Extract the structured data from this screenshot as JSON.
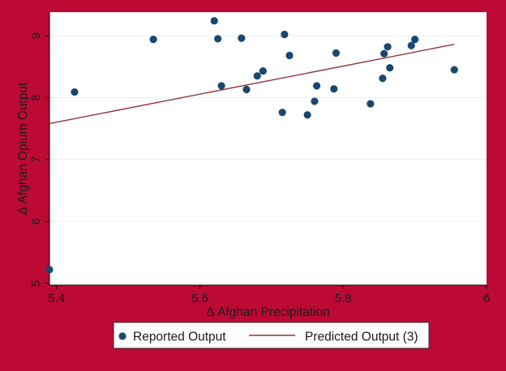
{
  "chart_data": {
    "type": "scatter",
    "title": "",
    "xlabel": "Δ Afghan Precipitation",
    "ylabel": "Δ Afghan Opium Output",
    "xlim": [
      5.39,
      6.0
    ],
    "ylim": [
      4.97,
      9.38
    ],
    "xticks": [
      "5.4",
      "5.6",
      "5.8",
      "6"
    ],
    "yticks": [
      "5",
      "6",
      "7",
      "8",
      "9"
    ],
    "xtick_values": [
      5.4,
      5.6,
      5.8,
      6.0
    ],
    "ytick_values": [
      5,
      6,
      7,
      8,
      9
    ],
    "grid": "horizontal",
    "legend_position": "bottom",
    "series": [
      {
        "name": "Reported Output",
        "type": "scatter",
        "color": "#1a476f",
        "points": [
          {
            "x": 5.39,
            "y": 5.22
          },
          {
            "x": 5.425,
            "y": 8.09
          },
          {
            "x": 5.535,
            "y": 8.94
          },
          {
            "x": 5.62,
            "y": 9.24
          },
          {
            "x": 5.625,
            "y": 8.95
          },
          {
            "x": 5.63,
            "y": 8.19
          },
          {
            "x": 5.658,
            "y": 8.96
          },
          {
            "x": 5.665,
            "y": 8.13
          },
          {
            "x": 5.68,
            "y": 8.35
          },
          {
            "x": 5.688,
            "y": 8.43
          },
          {
            "x": 5.715,
            "y": 7.76
          },
          {
            "x": 5.718,
            "y": 9.02
          },
          {
            "x": 5.725,
            "y": 8.68
          },
          {
            "x": 5.75,
            "y": 7.72
          },
          {
            "x": 5.76,
            "y": 7.94
          },
          {
            "x": 5.763,
            "y": 8.19
          },
          {
            "x": 5.787,
            "y": 8.14
          },
          {
            "x": 5.79,
            "y": 8.72
          },
          {
            "x": 5.838,
            "y": 7.9
          },
          {
            "x": 5.855,
            "y": 8.31
          },
          {
            "x": 5.857,
            "y": 8.71
          },
          {
            "x": 5.862,
            "y": 8.82
          },
          {
            "x": 5.865,
            "y": 8.48
          },
          {
            "x": 5.895,
            "y": 8.84
          },
          {
            "x": 5.9,
            "y": 8.94
          },
          {
            "x": 5.955,
            "y": 8.45
          }
        ]
      },
      {
        "name": "Predicted Output (3)",
        "type": "line",
        "color": "#90353b",
        "points": [
          {
            "x": 5.39,
            "y": 7.58
          },
          {
            "x": 5.955,
            "y": 8.86
          }
        ]
      }
    ],
    "colors": {
      "background": "#bd0a35",
      "plot_background": "#ffffff",
      "grid": "#eaf2f3"
    }
  },
  "legend": {
    "items": [
      {
        "label": "Reported Output"
      },
      {
        "label": "Predicted Output (3)"
      }
    ]
  }
}
